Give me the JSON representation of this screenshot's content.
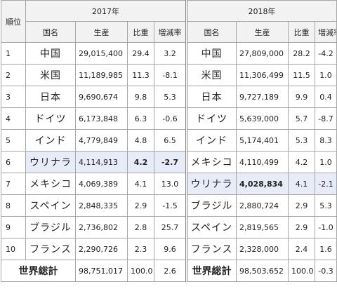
{
  "header": {
    "rank_label": "順位",
    "year1": "2017年",
    "year2": "2018年",
    "country_label": "国名",
    "production_label": "生産",
    "share_label": "比重",
    "growth_label": "増減率"
  },
  "rows": [
    {
      "rank": "1",
      "c1": "中国",
      "p1": "29,015,400",
      "s1": "29.4",
      "g1": "3.2",
      "c2": "中国",
      "p2": "27,809,000",
      "s2": "28.2",
      "g2": "-4.2"
    },
    {
      "rank": "2",
      "c1": "米国",
      "p1": "11,189,985",
      "s1": "11.3",
      "g1": "-8.1",
      "c2": "米国",
      "p2": "11,306,499",
      "s2": "11.5",
      "g2": "1.0"
    },
    {
      "rank": "3",
      "c1": "日本",
      "p1": "9,690,674",
      "s1": "9.8",
      "g1": "5.3",
      "c2": "日本",
      "p2": "9,727,189",
      "s2": "9.9",
      "g2": "0.4"
    },
    {
      "rank": "4",
      "c1": "ドイツ",
      "p1": "6,173,848",
      "s1": "6.3",
      "g1": "-0.6",
      "c2": "ドイツ",
      "p2": "5,639,000",
      "s2": "5.7",
      "g2": "-8.7"
    },
    {
      "rank": "5",
      "c1": "インド",
      "p1": "4,779,849",
      "s1": "4.8",
      "g1": "6.5",
      "c2": "インド",
      "p2": "5,174,401",
      "s2": "5.3",
      "g2": "8.3"
    },
    {
      "rank": "6",
      "c1": "ウリナラ",
      "p1": "4,114,913",
      "s1": "4.2",
      "g1": "-2.7",
      "c2": "メキシコ",
      "p2": "4,110,499",
      "s2": "4.2",
      "g2": "1.0"
    },
    {
      "rank": "7",
      "c1": "メキシコ",
      "p1": "4,069,389",
      "s1": "4.1",
      "g1": "13.0",
      "c2": "ウリナラ",
      "p2": "4,028,834",
      "s2": "4.1",
      "g2": "-2.1"
    },
    {
      "rank": "8",
      "c1": "スペイン",
      "p1": "2,848,335",
      "s1": "2.9",
      "g1": "-1.5",
      "c2": "ブラジル",
      "p2": "2,880,724",
      "s2": "2.9",
      "g2": "5.3"
    },
    {
      "rank": "9",
      "c1": "ブラジル",
      "p1": "2,736,802",
      "s1": "2.8",
      "g1": "25.7",
      "c2": "スペイン",
      "p2": "2,819,565",
      "s2": "2.9",
      "g2": "-1.0"
    },
    {
      "rank": "10",
      "c1": "フランス",
      "p1": "2,290,726",
      "s1": "2.3",
      "g1": "9.6",
      "c2": "フランス",
      "p2": "2,328,000",
      "s2": "2.4",
      "g2": "1.6"
    }
  ],
  "total": {
    "label1": "世界総計",
    "p1": "98,751,017",
    "s1": "100.0",
    "g1": "2.6",
    "label2": "世界総計",
    "p2": "98,503,652",
    "s2": "100.0",
    "g2": "-0.3"
  }
}
